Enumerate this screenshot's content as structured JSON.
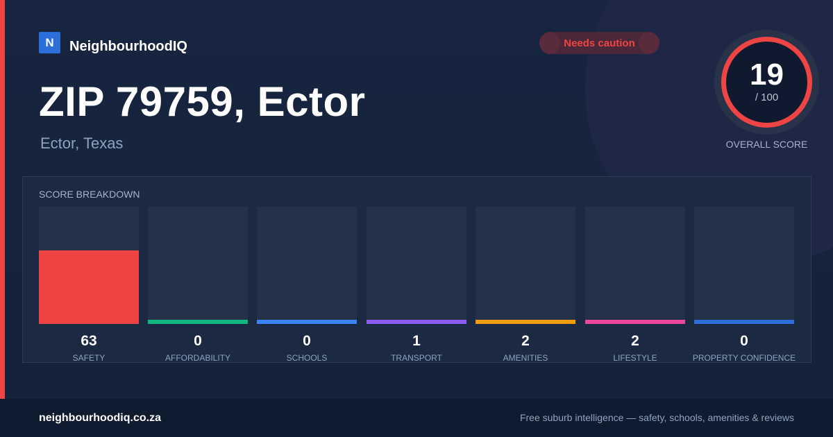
{
  "brand": {
    "logo_letter": "N",
    "name": "NeighbourhoodIQ"
  },
  "status_badge": {
    "label": "Needs caution",
    "color": "#ef4444"
  },
  "location": {
    "title": "ZIP 79759, Ector",
    "subtitle": "Ector, Texas"
  },
  "overall_score": {
    "value": "19",
    "max_label": "/ 100",
    "label": "OVERALL SCORE",
    "fraction": 0.19,
    "ring_color": "#ef4444"
  },
  "breakdown": {
    "title": "SCORE BREAKDOWN",
    "items": [
      {
        "value": "63",
        "label": "SAFETY",
        "fraction": 0.63,
        "color": "#ef4444"
      },
      {
        "value": "0",
        "label": "AFFORDABILITY",
        "fraction": 0,
        "color": "#10b981"
      },
      {
        "value": "0",
        "label": "SCHOOLS",
        "fraction": 0,
        "color": "#3b82f6"
      },
      {
        "value": "1",
        "label": "TRANSPORT",
        "fraction": 0.01,
        "color": "#8b5cf6"
      },
      {
        "value": "2",
        "label": "AMENITIES",
        "fraction": 0.02,
        "color": "#f59e0b"
      },
      {
        "value": "2",
        "label": "LIFESTYLE",
        "fraction": 0.02,
        "color": "#ec4899"
      },
      {
        "value": "0",
        "label": "PROPERTY CONFIDENCE",
        "fraction": 0,
        "color": "#2d6fd8"
      }
    ]
  },
  "footer": {
    "url": "neighbourhoodiq.co.za",
    "tagline": "Free suburb intelligence — safety, schools, amenities & reviews"
  }
}
